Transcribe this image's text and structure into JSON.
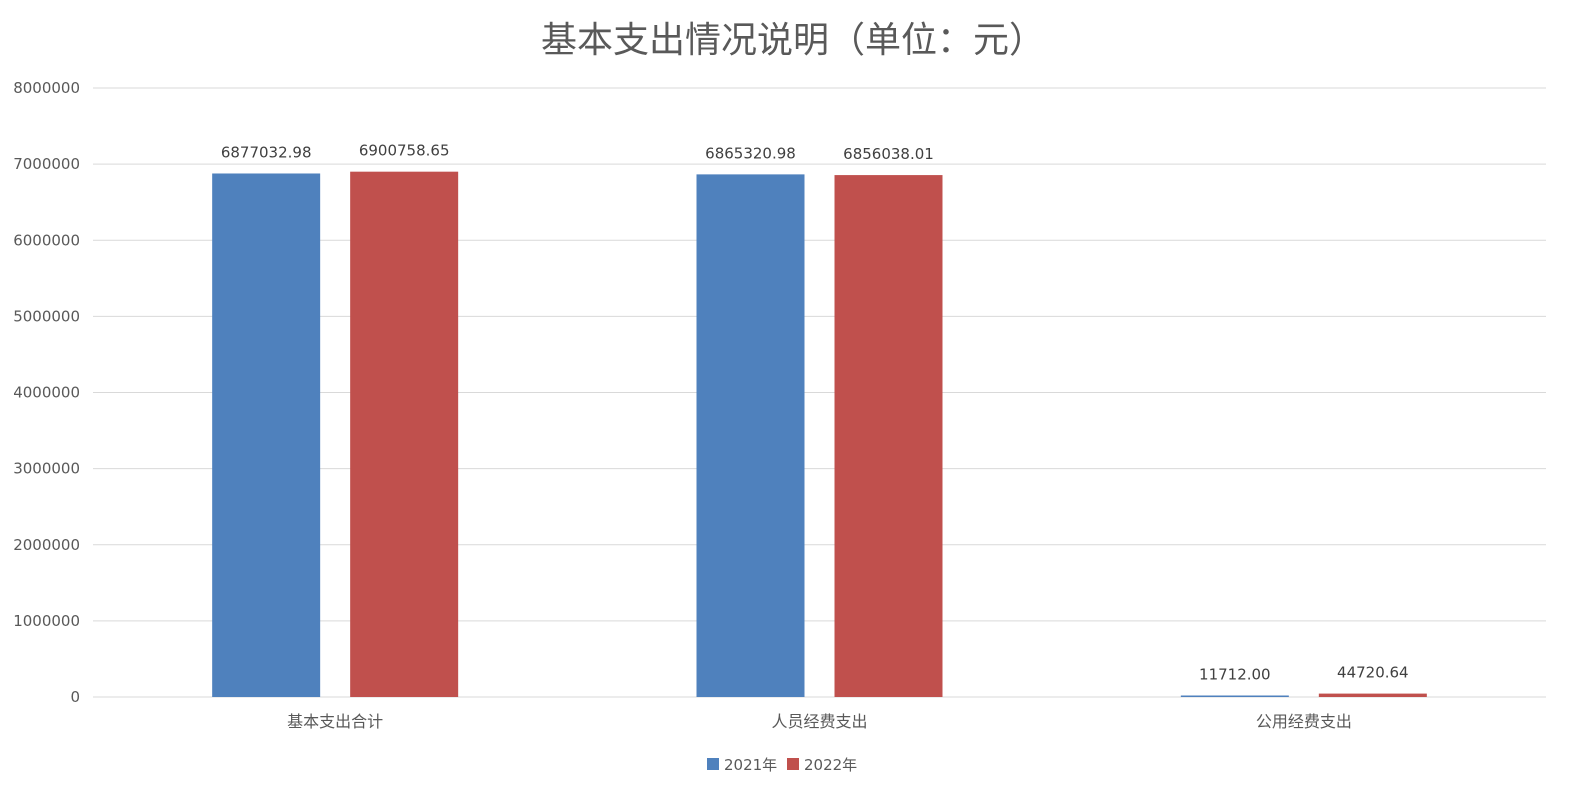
{
  "chart_data": {
    "type": "bar",
    "title": "基本支出情况说明（单位：元）",
    "categories": [
      "基本支出合计",
      "人员经费支出",
      "公用经费支出"
    ],
    "series": [
      {
        "name": "2021年",
        "values": [
          6877032.98,
          6865320.98,
          11712.0
        ],
        "labels": [
          "6877032.98",
          "6865320.98",
          "11712.00"
        ],
        "color": "#4f81bd"
      },
      {
        "name": "2022年",
        "values": [
          6900758.65,
          6856038.01,
          44720.64
        ],
        "labels": [
          "6900758.65",
          "6856038.01",
          "44720.64"
        ],
        "color": "#c0504d"
      }
    ],
    "ylim": [
      0,
      8000000
    ],
    "yticks": [
      "0",
      "1000000",
      "2000000",
      "3000000",
      "4000000",
      "5000000",
      "6000000",
      "7000000",
      "8000000"
    ],
    "grid": true,
    "legend": "bottom"
  }
}
